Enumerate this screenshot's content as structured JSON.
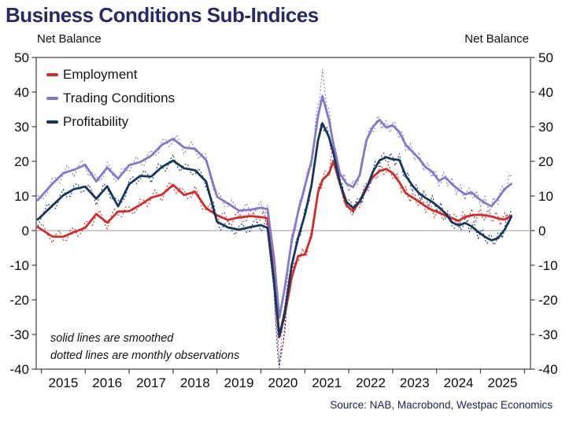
{
  "title": "Business Conditions Sub-Indices",
  "axis": {
    "left_label": "Net Balance",
    "right_label": "Net Balance",
    "y_ticks": [
      50,
      40,
      30,
      20,
      10,
      0,
      -10,
      -20,
      -30,
      -40
    ],
    "x_tick_years": [
      2015,
      2016,
      2017,
      2018,
      2019,
      2020,
      2021,
      2022,
      2023,
      2024,
      2025
    ],
    "x_boundary_years": [
      2015,
      2016,
      2017,
      2018,
      2019,
      2020,
      2021,
      2022,
      2023,
      2024,
      2025,
      2026
    ]
  },
  "annotation": {
    "line1": "solid lines are smoothed",
    "line2": "dotted lines are monthly observations"
  },
  "source": "Source: NAB, Macrobond, Westpac Economics",
  "colors": {
    "title": "#2b2963",
    "employment": "#d22b2b",
    "trading": "#8478cb",
    "profitability": "#17365e",
    "zero_line": "#aeaeae",
    "axis": "#3f3f3f",
    "axis_text": "#0d0d0d",
    "source_text": "#222150"
  },
  "chart_data": {
    "type": "line",
    "title": "Business Conditions Sub-Indices",
    "ylabel": "Net Balance",
    "ylim": [
      -40,
      50
    ],
    "xlim": [
      2014.9,
      2026.1
    ],
    "grid": "zero-line only",
    "legend_position": "top-left inside plot",
    "note": "solid lines are smoothed; dotted lines are monthly observations",
    "x": [
      2014.92,
      2015.25,
      2015.5,
      2015.75,
      2016.0,
      2016.25,
      2016.5,
      2016.75,
      2017.0,
      2017.25,
      2017.5,
      2017.75,
      2018.0,
      2018.25,
      2018.5,
      2018.75,
      2019.0,
      2019.25,
      2019.5,
      2019.75,
      2020.0,
      2020.15,
      2020.3,
      2020.42,
      2020.55,
      2020.7,
      2020.85,
      2021.0,
      2021.15,
      2021.3,
      2021.4,
      2021.55,
      2021.65,
      2021.8,
      2021.95,
      2022.1,
      2022.25,
      2022.4,
      2022.55,
      2022.7,
      2022.85,
      2023.0,
      2023.15,
      2023.3,
      2023.45,
      2023.6,
      2023.75,
      2023.9,
      2024.05,
      2024.2,
      2024.35,
      2024.5,
      2024.65,
      2024.8,
      2024.95,
      2025.1,
      2025.25,
      2025.4,
      2025.55,
      2025.7
    ],
    "series": [
      {
        "name": "Employment",
        "color": "#d22b2b",
        "values": [
          1.0,
          -1.7,
          -1.8,
          -0.4,
          0.8,
          4.8,
          2.3,
          5.5,
          5.6,
          7.4,
          9.5,
          10.4,
          13.2,
          10.3,
          11.2,
          6.5,
          4.4,
          3.1,
          3.8,
          4.2,
          3.9,
          3.6,
          -13.0,
          -30.8,
          -24.0,
          -13.5,
          -7.3,
          -6.9,
          -1.5,
          11.0,
          14.6,
          16.5,
          20.1,
          13.5,
          7.2,
          5.6,
          8.5,
          12.5,
          15.5,
          17.2,
          17.8,
          16.6,
          14.0,
          10.8,
          9.6,
          8.4,
          7.0,
          5.9,
          5.2,
          4.4,
          3.6,
          2.8,
          4.0,
          4.4,
          4.6,
          4.4,
          4.1,
          3.5,
          3.2,
          4.3
        ],
        "dotted_extremes": [
          {
            "t": 2020.42,
            "delta": -8.0
          },
          {
            "t": 2021.65,
            "delta": 2.5
          }
        ]
      },
      {
        "name": "Trading Conditions",
        "color": "#8478cb",
        "values": [
          8.8,
          13.5,
          16.6,
          17.6,
          19.0,
          14.2,
          18.2,
          15.0,
          18.9,
          19.8,
          21.6,
          24.8,
          26.5,
          24.0,
          23.6,
          20.4,
          9.8,
          7.8,
          5.8,
          6.0,
          6.6,
          6.2,
          -8.0,
          -25.2,
          -16.0,
          -3.0,
          5.5,
          12.8,
          20.0,
          33.0,
          38.8,
          32.0,
          25.0,
          16.5,
          13.5,
          12.6,
          16.0,
          26.0,
          30.0,
          32.0,
          29.8,
          30.4,
          28.5,
          24.7,
          22.8,
          20.8,
          18.3,
          17.0,
          14.4,
          15.4,
          13.4,
          11.8,
          10.5,
          11.0,
          9.3,
          8.0,
          7.0,
          9.3,
          12.0,
          13.5
        ],
        "dotted_extremes": [
          {
            "t": 2020.42,
            "delta": -12.0
          },
          {
            "t": 2021.4,
            "delta": 6.0
          },
          {
            "t": 2025.7,
            "delta": 2.2
          }
        ]
      },
      {
        "name": "Profitability",
        "color": "#17365e",
        "values": [
          3.2,
          7.2,
          10.2,
          12.0,
          12.7,
          9.2,
          12.8,
          7.0,
          13.4,
          15.8,
          15.6,
          18.4,
          20.2,
          18.0,
          17.4,
          14.2,
          2.6,
          0.9,
          0.3,
          1.0,
          1.6,
          0.8,
          -15.0,
          -30.5,
          -23.0,
          -10.0,
          -2.0,
          4.5,
          13.0,
          26.0,
          31.0,
          27.0,
          22.4,
          13.8,
          8.2,
          6.6,
          8.4,
          12.0,
          17.0,
          20.3,
          21.2,
          20.6,
          20.4,
          15.8,
          13.0,
          10.8,
          9.4,
          8.3,
          6.8,
          5.0,
          2.4,
          1.5,
          2.2,
          1.2,
          -0.4,
          -1.8,
          -2.8,
          -2.2,
          0.3,
          4.0
        ],
        "dotted_extremes": [
          {
            "t": 2020.42,
            "delta": -10.0
          },
          {
            "t": 2025.7,
            "delta": 2.0
          }
        ]
      }
    ],
    "dotted_style": {
      "amplitude": 1.9,
      "meaning": "monthly observations"
    }
  }
}
